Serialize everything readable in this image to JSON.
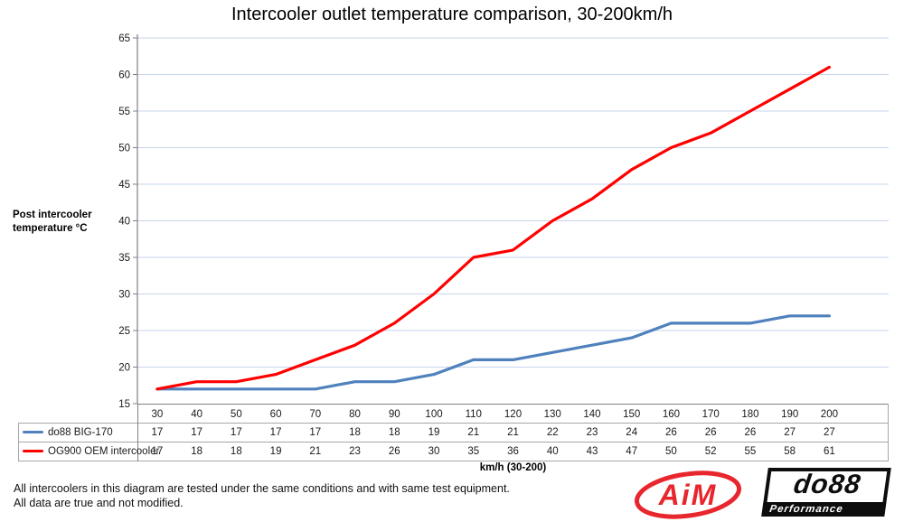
{
  "title": "Intercooler outlet temperature comparison, 30-200km/h",
  "y_axis_title": {
    "line1": "Post intercooler",
    "line2": "temperature °C"
  },
  "x_axis_title": "km/h (30-200)",
  "chart_data": {
    "type": "line",
    "categories": [
      30,
      40,
      50,
      60,
      70,
      80,
      90,
      100,
      110,
      120,
      130,
      140,
      150,
      160,
      170,
      180,
      190,
      200
    ],
    "series": [
      {
        "name": "do88 BIG-170",
        "color": "#4F81BD",
        "values": [
          17,
          17,
          17,
          17,
          17,
          18,
          18,
          19,
          21,
          21,
          22,
          23,
          24,
          26,
          26,
          26,
          27,
          27
        ]
      },
      {
        "name": "OG900 OEM intercooler",
        "color": "#FF0000",
        "values": [
          17,
          18,
          18,
          19,
          21,
          23,
          26,
          30,
          35,
          36,
          40,
          43,
          47,
          50,
          52,
          55,
          58,
          61
        ]
      }
    ],
    "ylim": [
      15,
      65
    ],
    "ytick_step": 5,
    "grid": "horizontal-only",
    "gridline_color": "#C6D5EC",
    "axis_color": "#808080",
    "legend_position": "table-left",
    "xlabel": "km/h (30-200)",
    "ylabel": "Post intercooler temperature °C"
  },
  "footer": {
    "line1": "All intercoolers in this diagram are tested under the same conditions and with same test equipment.",
    "line2": "All data are true and not modified."
  },
  "logos": {
    "aim": {
      "text": "AiM",
      "color": "#E8262D"
    },
    "do88": {
      "text": "do88",
      "sub": "Performance"
    }
  }
}
